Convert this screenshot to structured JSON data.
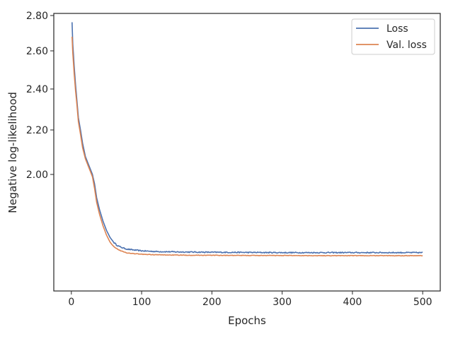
{
  "chart_data": {
    "type": "line",
    "xlabel": "Epochs",
    "ylabel": "Negative log-likelihood",
    "xlim": [
      -25,
      525
    ],
    "ylim": [
      1.44,
      2.81
    ],
    "y_scale": "custom-nonlinear",
    "xticks": [
      0,
      100,
      200,
      300,
      400,
      500
    ],
    "xtick_labels": [
      "0",
      "100",
      "200",
      "300",
      "400",
      "500"
    ],
    "yticks": [
      2.0,
      2.2,
      2.4,
      2.6,
      2.8
    ],
    "ytick_labels": [
      "2.00",
      "2.20",
      "2.40",
      "2.60",
      "2.80"
    ],
    "grid": false,
    "legend_position": "top-right",
    "series": [
      {
        "name": "Loss",
        "color": "#4c72b0",
        "noise": 0.003,
        "x": [
          1,
          2,
          4,
          6,
          8,
          10,
          13,
          16,
          20,
          25,
          30,
          33,
          36,
          40,
          45,
          50,
          55,
          60,
          65,
          70,
          75,
          80,
          90,
          100,
          120,
          150,
          200,
          250,
          300,
          350,
          400,
          450,
          500
        ],
        "y": [
          2.762,
          2.64,
          2.52,
          2.42,
          2.34,
          2.26,
          2.2,
          2.14,
          2.08,
          2.04,
          2.0,
          1.96,
          1.9,
          1.85,
          1.8,
          1.76,
          1.73,
          1.71,
          1.695,
          1.685,
          1.678,
          1.673,
          1.668,
          1.664,
          1.66,
          1.658,
          1.656,
          1.655,
          1.654,
          1.654,
          1.654,
          1.654,
          1.654
        ]
      },
      {
        "name": "Val. loss",
        "color": "#dd8452",
        "noise": 0.0015,
        "x": [
          1,
          2,
          4,
          6,
          8,
          10,
          13,
          16,
          20,
          25,
          30,
          33,
          36,
          40,
          45,
          50,
          55,
          60,
          65,
          70,
          75,
          80,
          90,
          100,
          120,
          150,
          200,
          250,
          300,
          350,
          400,
          450,
          500
        ],
        "y": [
          2.68,
          2.59,
          2.48,
          2.39,
          2.32,
          2.24,
          2.18,
          2.12,
          2.07,
          2.03,
          1.99,
          1.94,
          1.88,
          1.83,
          1.78,
          1.74,
          1.71,
          1.69,
          1.675,
          1.665,
          1.657,
          1.652,
          1.648,
          1.645,
          1.642,
          1.64,
          1.639,
          1.638,
          1.638,
          1.637,
          1.637,
          1.637,
          1.637
        ]
      }
    ]
  }
}
